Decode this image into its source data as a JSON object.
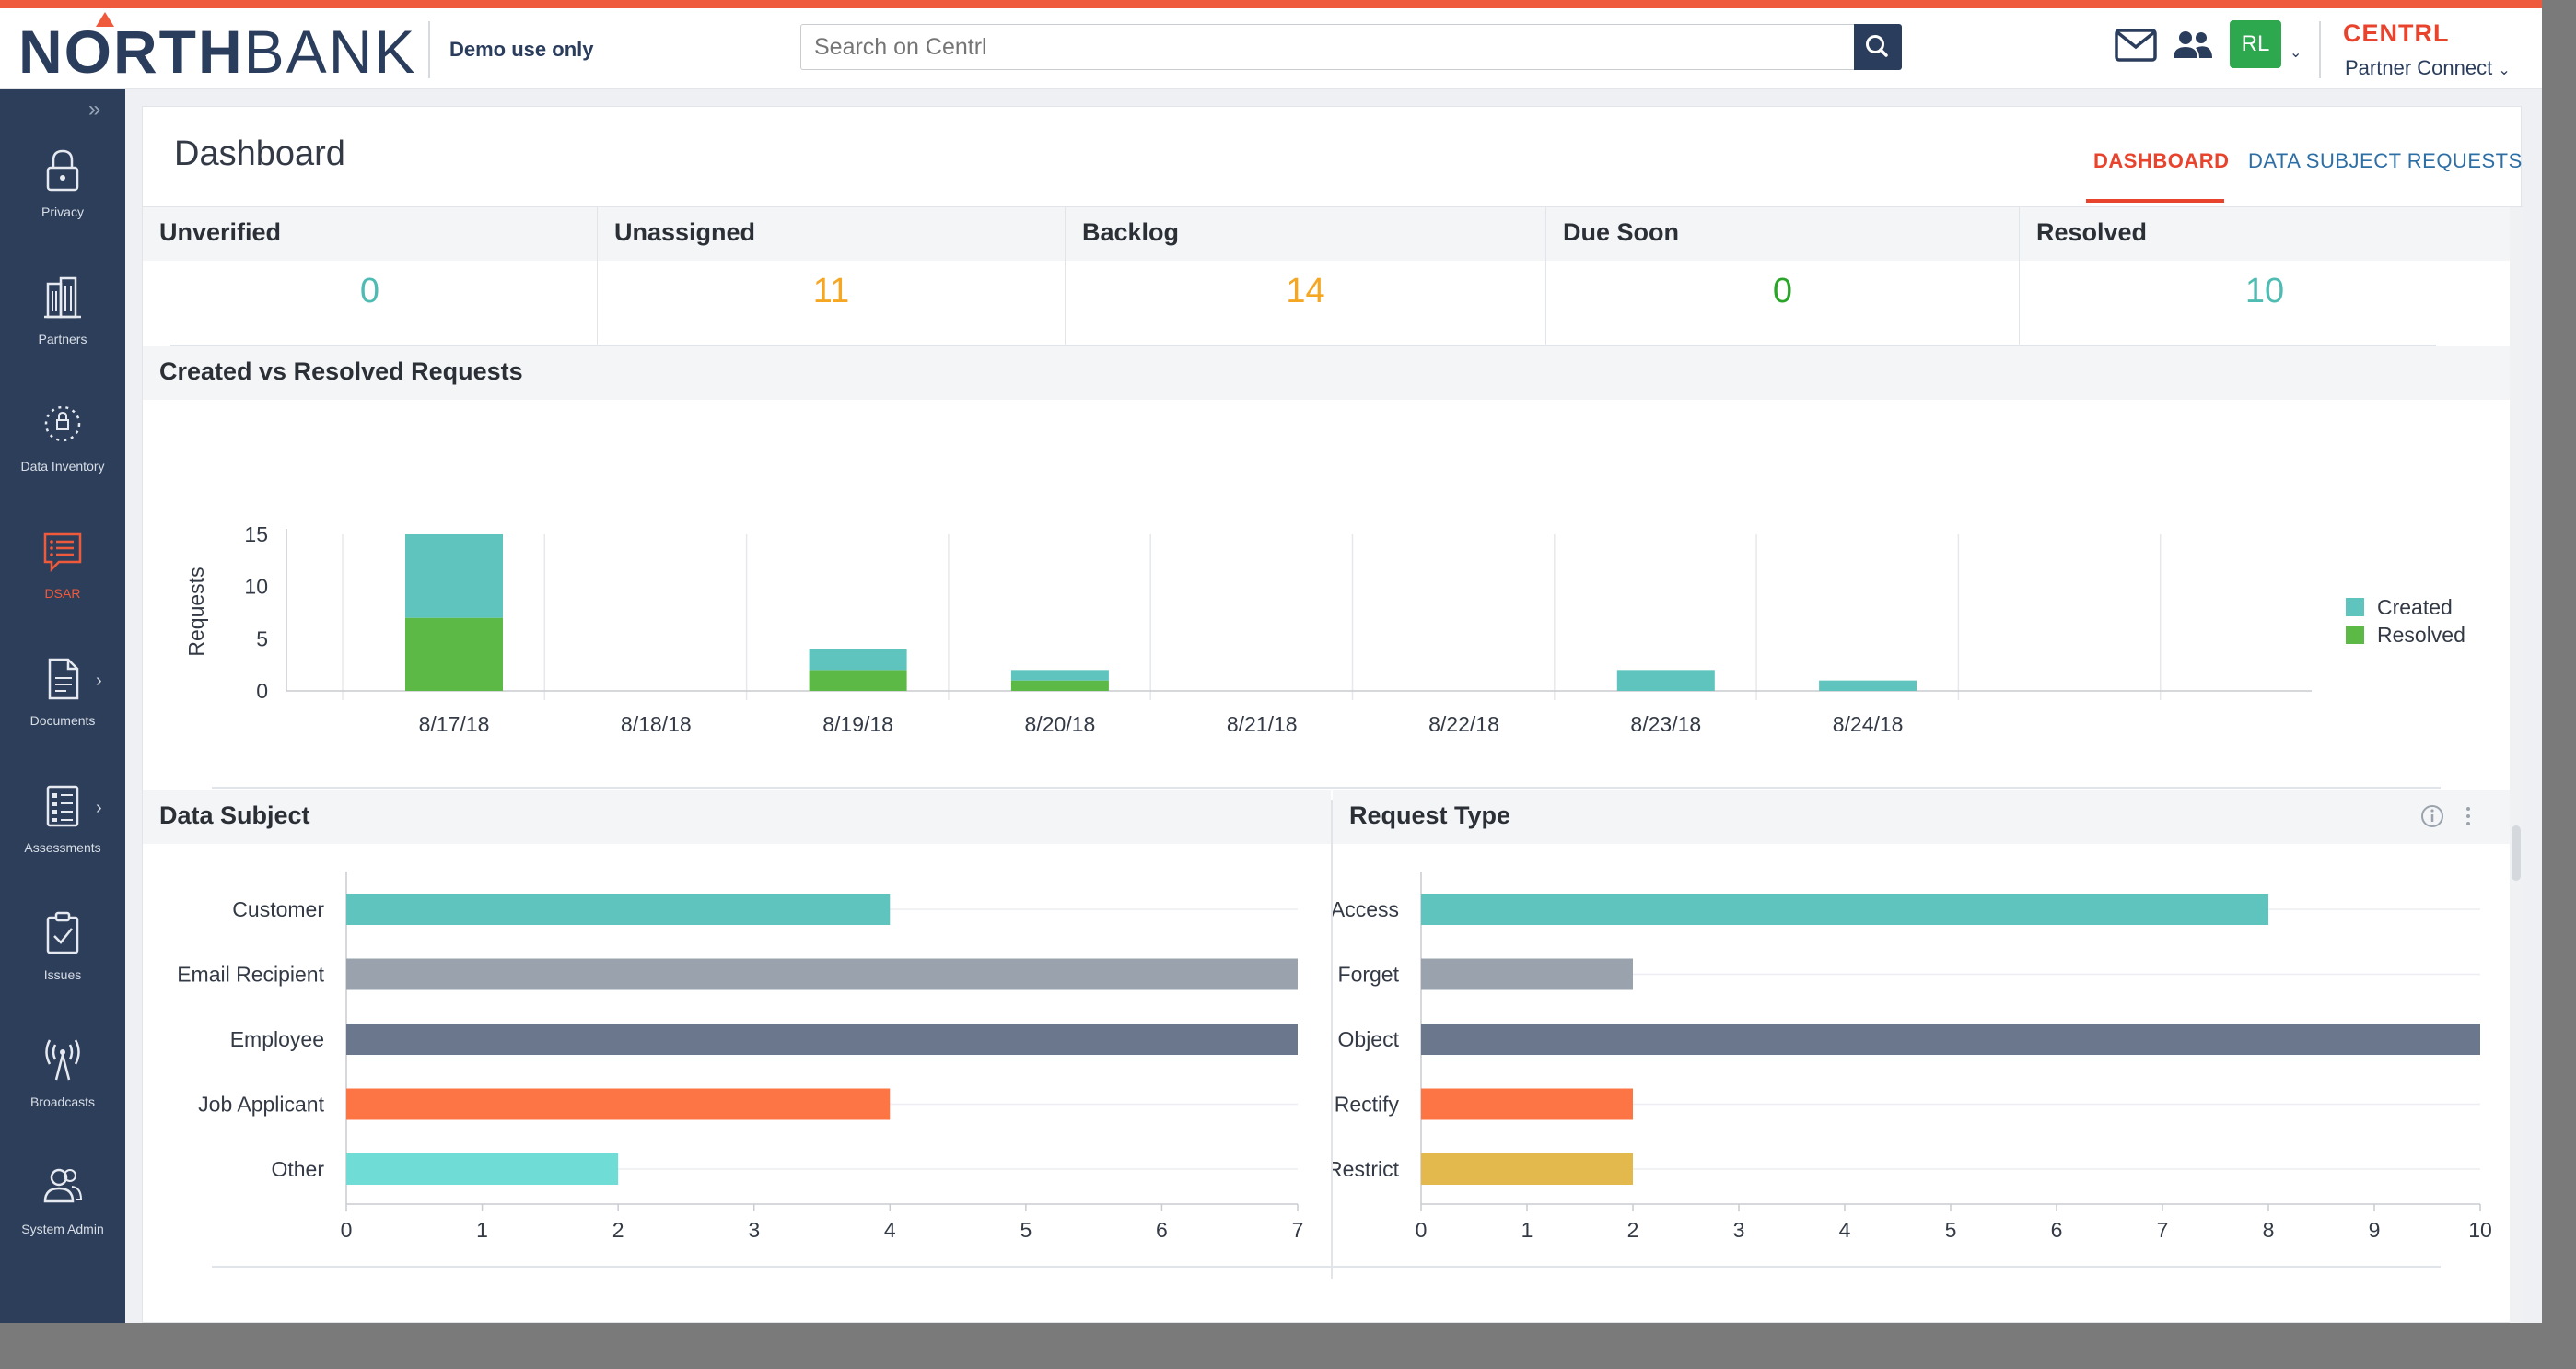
{
  "header": {
    "logo_north": "NORTH",
    "logo_bank": "BANK",
    "demo_label": "Demo use only",
    "search_placeholder": "Search on Centrl",
    "avatar_initials": "RL",
    "brand": "CENTRL",
    "partner_label": "Partner Connect"
  },
  "sidebar": {
    "items": [
      {
        "label": "Privacy",
        "icon": "lock-icon"
      },
      {
        "label": "Partners",
        "icon": "buildings-icon"
      },
      {
        "label": "Data Inventory",
        "icon": "data-inventory-icon"
      },
      {
        "label": "DSAR",
        "icon": "dsar-icon"
      },
      {
        "label": "Documents",
        "icon": "document-icon"
      },
      {
        "label": "Assessments",
        "icon": "assessments-icon"
      },
      {
        "label": "Issues",
        "icon": "clipboard-check-icon"
      },
      {
        "label": "Broadcasts",
        "icon": "broadcast-icon"
      },
      {
        "label": "System Admin",
        "icon": "users-admin-icon"
      }
    ],
    "active": "DSAR"
  },
  "page": {
    "title": "Dashboard",
    "tabs": [
      "DASHBOARD",
      "DATA SUBJECT REQUESTS"
    ],
    "active_tab": "DASHBOARD"
  },
  "stats": [
    {
      "label": "Unverified",
      "value": "0",
      "color": "#4fbcb4"
    },
    {
      "label": "Unassigned",
      "value": "11",
      "color": "#f5a623"
    },
    {
      "label": "Backlog",
      "value": "14",
      "color": "#f5a623"
    },
    {
      "label": "Due Soon",
      "value": "0",
      "color": "#2aa52a"
    },
    {
      "label": "Resolved",
      "value": "10",
      "color": "#4fbcb4"
    }
  ],
  "colors": {
    "teal": "#5fc4bd",
    "green": "#5cb946",
    "gray": "#9aa3ad",
    "slate": "#6b778c",
    "orange": "#fd7545",
    "aqua": "#6fddd6",
    "gold": "#e3b84d",
    "accent": "#e8432d"
  },
  "chart_data": [
    {
      "type": "bar",
      "title": "Created vs Resolved Requests",
      "ylabel": "Requests",
      "xlabel": "",
      "ylim": [
        0,
        15
      ],
      "yticks": [
        "0",
        "5",
        "10",
        "15"
      ],
      "categories": [
        "8/17/18",
        "8/18/18",
        "8/19/18",
        "8/20/18",
        "8/21/18",
        "8/22/18",
        "8/23/18",
        "8/24/18"
      ],
      "series": [
        {
          "name": "Resolved",
          "values": [
            7,
            0,
            2,
            1,
            0,
            0,
            0,
            0
          ]
        },
        {
          "name": "Created",
          "values": [
            8,
            0,
            2,
            1,
            0,
            0,
            2,
            1
          ]
        }
      ],
      "legend": [
        "Created",
        "Resolved"
      ],
      "legend_position": "right",
      "stacked": true
    },
    {
      "type": "bar",
      "orientation": "horizontal",
      "title": "Data Subject",
      "categories": [
        "Customer",
        "Email Recipient",
        "Employee",
        "Job Applicant",
        "Other"
      ],
      "values": [
        4,
        7,
        7,
        4,
        2
      ],
      "xlim": [
        0,
        7
      ],
      "xticks": [
        "0",
        "1",
        "2",
        "3",
        "4",
        "5",
        "6",
        "7"
      ]
    },
    {
      "type": "bar",
      "orientation": "horizontal",
      "title": "Request Type",
      "categories": [
        "Access",
        "Forget",
        "Object",
        "Rectify",
        "Restrict"
      ],
      "values": [
        8,
        2,
        10,
        2,
        2
      ],
      "xlim": [
        0,
        10
      ],
      "xticks": [
        "0",
        "1",
        "2",
        "3",
        "4",
        "5",
        "6",
        "7",
        "8",
        "9",
        "10"
      ]
    }
  ]
}
